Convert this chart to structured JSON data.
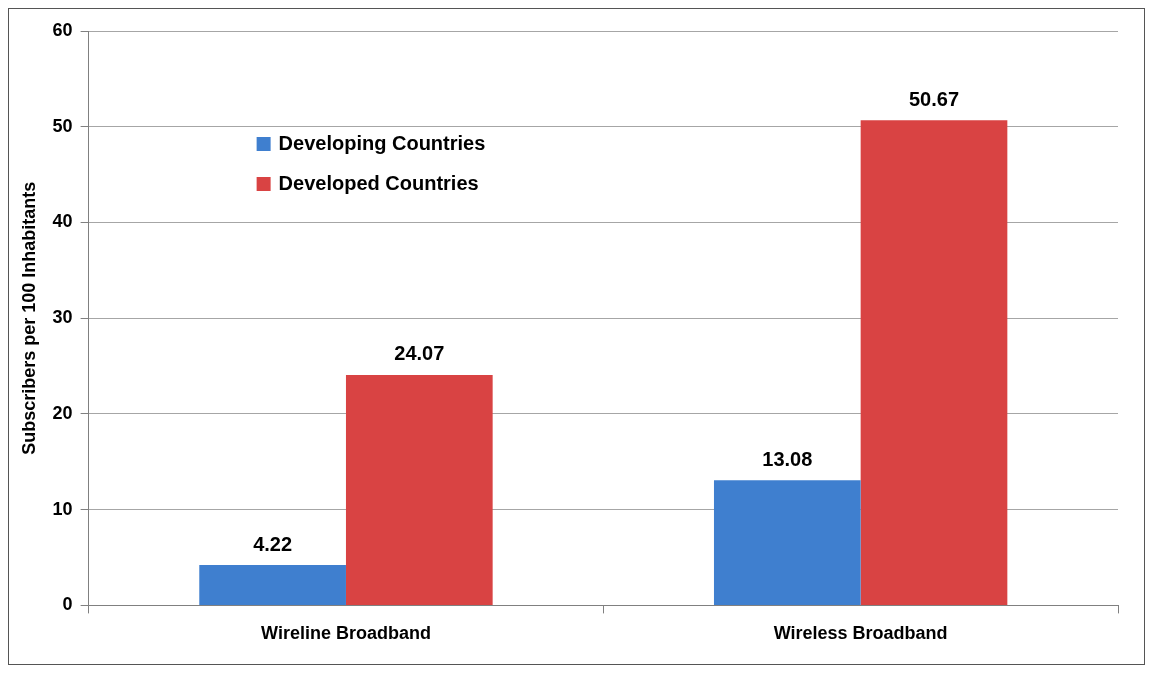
{
  "chart_data": {
    "type": "bar",
    "ylabel": "Subscribers per 100 Inhabitants",
    "categories": [
      "Wireline Broadband",
      "Wireless Broadband"
    ],
    "series": [
      {
        "name": "Developing Countries",
        "color": "#3f7fcf",
        "values": [
          4.22,
          13.08
        ]
      },
      {
        "name": "Developed Countries",
        "color": "#d94343",
        "values": [
          24.07,
          50.67
        ]
      }
    ],
    "ylim": [
      0,
      60
    ],
    "yticks": [
      0,
      10,
      20,
      30,
      40,
      50,
      60
    ],
    "grid": "y",
    "legend": "top left",
    "data_labels": true
  }
}
